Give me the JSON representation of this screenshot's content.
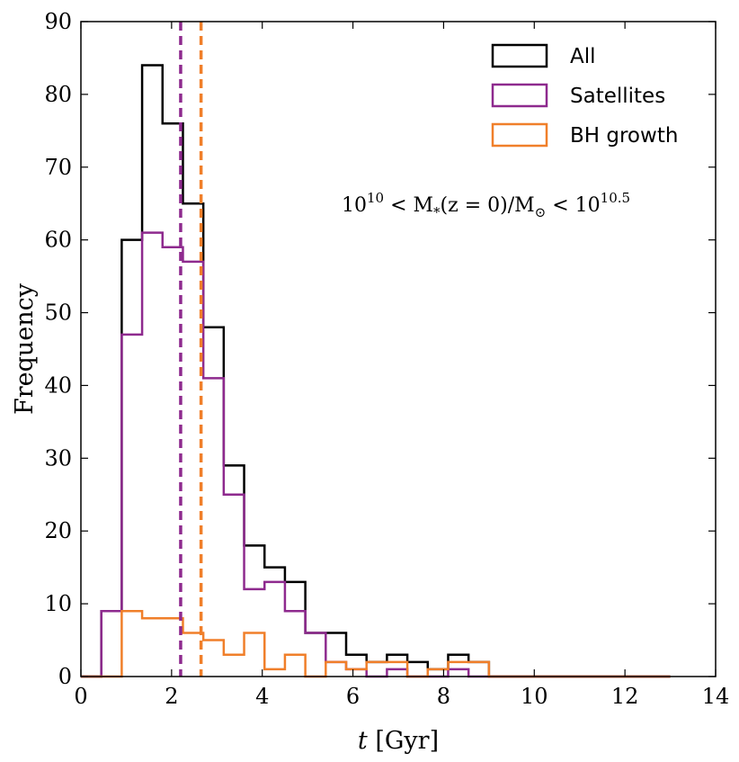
{
  "chart_data": {
    "type": "histogram",
    "xlabel_var": "t",
    "xlabel_unit": "[Gyr]",
    "ylabel": "Frequency",
    "xlim": [
      0,
      14
    ],
    "ylim": [
      0,
      90
    ],
    "xticks": [
      0,
      2,
      4,
      6,
      8,
      10,
      12,
      14
    ],
    "yticks": [
      0,
      10,
      20,
      30,
      40,
      50,
      60,
      70,
      80,
      90
    ],
    "bin_edges": [
      0.0,
      0.45,
      0.9,
      1.35,
      1.8,
      2.25,
      2.7,
      3.15,
      3.6,
      4.05,
      4.5,
      4.95,
      5.4,
      5.85,
      6.3,
      6.75,
      7.2,
      7.65,
      8.1,
      8.55,
      9.0,
      9.45,
      9.9,
      10.35,
      10.8,
      11.25,
      11.7,
      12.15,
      12.6,
      13.0
    ],
    "series": [
      {
        "name": "All",
        "color": "#000000",
        "values": [
          0,
          9,
          60,
          84,
          76,
          65,
          48,
          29,
          18,
          15,
          13,
          6,
          6,
          3,
          2,
          3,
          2,
          1,
          3,
          2,
          0,
          0,
          0,
          0,
          0,
          0,
          0,
          0,
          0
        ]
      },
      {
        "name": "Satellites",
        "color": "#8e2a8e",
        "values": [
          0,
          9,
          47,
          61,
          59,
          57,
          41,
          25,
          12,
          13,
          9,
          6,
          2,
          1,
          0,
          1,
          0,
          0,
          1,
          0,
          0,
          0,
          0,
          0,
          0,
          0,
          0,
          0,
          0
        ]
      },
      {
        "name": "BH growth",
        "color": "#f07f2a",
        "values": [
          0,
          0,
          9,
          8,
          8,
          6,
          5,
          3,
          6,
          1,
          3,
          0,
          2,
          1,
          2,
          2,
          0,
          1,
          2,
          2,
          0,
          0,
          0,
          0,
          0,
          0,
          0,
          0,
          0
        ]
      }
    ],
    "vlines": [
      {
        "x": 2.2,
        "color": "#8e2a8e",
        "series": "Satellites"
      },
      {
        "x": 2.65,
        "color": "#f07f2a",
        "series": "BH growth"
      }
    ],
    "legend_position": "top-right",
    "annotation": {
      "base1": "10",
      "exp1": "10",
      "mid1": " < M",
      "sub1": "*",
      "mid2": "(z = 0)/M",
      "sub2": "⊙",
      "mid3": " < 10",
      "exp2": "10.5"
    }
  }
}
